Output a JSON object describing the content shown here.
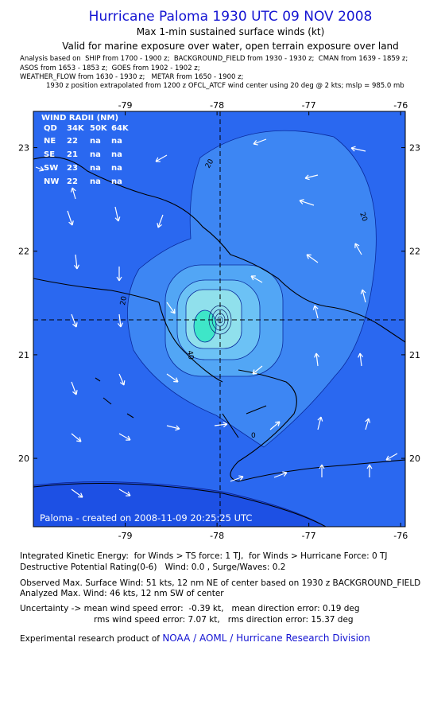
{
  "header": {
    "title": "Hurricane Paloma 1930 UTC 09 NOV 2008",
    "subtitle": "Max 1-min sustained surface winds (kt)",
    "valid": "Valid for marine exposure over water, open terrain exposure over land",
    "analysis_lines": [
      "Analysis based on  SHIP from 1700 - 1900 z;  BACKGROUND_FIELD from 1930 - 1930 z;  CMAN from 1639 - 1859 z;",
      "ASOS from 1653 - 1853 z;  GOES from 1902 - 1902 z;",
      "WEATHER_FLOW from 1630 - 1930 z;   METAR from 1650 - 1900 z;",
      "1930 z position extrapolated from 1200 z OFCL_ATCF wind center using 20 deg @ 2 kts; mslp = 985.0 mb"
    ]
  },
  "map": {
    "xlim": [
      -80,
      -75.95
    ],
    "ylim": [
      19.34,
      23.35
    ],
    "xticks": [
      -79,
      -78,
      -77,
      -76
    ],
    "yticks": [
      20,
      21,
      22,
      23
    ],
    "wind_radii": {
      "title": "WIND RADII (NM)",
      "header": [
        "QD",
        "34K",
        "50K",
        "64K"
      ],
      "rows": [
        [
          "NE",
          22,
          "na",
          "na"
        ],
        [
          "SE",
          21,
          "na",
          "na"
        ],
        [
          "SW",
          23,
          "na",
          "na"
        ],
        [
          "NW",
          22,
          "na",
          "na"
        ]
      ]
    },
    "contour_labels": [
      "20",
      "20",
      "20",
      "40",
      "0"
    ],
    "credit": "Paloma - created on 2008-11-09 20:25:25 UTC"
  },
  "footer": {
    "lines": [
      "Integrated Kinetic Energy:  for Winds > TS force: 1 TJ,  for Winds > Hurricane Force: 0 TJ",
      "Destructive Potential Rating(0-6)   Wind: 0.0 , Surge/Waves: 0.2",
      "Observed Max. Surface Wind: 51 kts, 12 nm NE of center based on 1930 z BACKGROUND_FIELD",
      "Analyzed Max. Wind: 46 kts, 12 nm SW of center",
      "Uncertainty -> mean wind speed error:  -0.39 kt,   mean direction error: 0.19 deg",
      "rms wind speed error: 7.07 kt,   rms direction error: 15.37 deg"
    ],
    "product_prefix": "Experimental research product of",
    "product_link": "NOAA / AOML / Hurricane Research Division"
  }
}
